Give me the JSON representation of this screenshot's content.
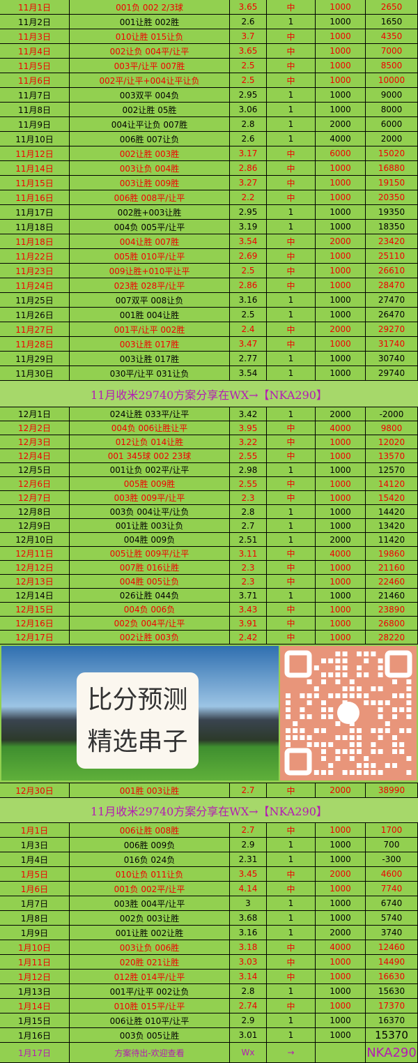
{
  "november": {
    "rows": [
      [
        "11月1日",
        "001负 002 2/3球",
        "3.65",
        "中",
        "1000",
        "2650"
      ],
      [
        "11月2日",
        "001让胜 002胜",
        "2.6",
        "1",
        "1000",
        "1650"
      ],
      [
        "11月3日",
        "010让胜 015让负",
        "3.7",
        "中",
        "1000",
        "4350"
      ],
      [
        "11月4日",
        "002让负 004平/让平",
        "3.65",
        "中",
        "1000",
        "7000"
      ],
      [
        "11月5日",
        "003平/让平 007胜",
        "2.5",
        "中",
        "1000",
        "8500"
      ],
      [
        "11月6日",
        "002平/让平+004让平让负",
        "2.5",
        "中",
        "1000",
        "10000"
      ],
      [
        "11月7日",
        "003双平 004负",
        "2.95",
        "1",
        "1000",
        "9000"
      ],
      [
        "11月8日",
        "002让胜 05胜",
        "3.06",
        "1",
        "1000",
        "8000"
      ],
      [
        "11月9日",
        "004让平让负 007胜",
        "2.8",
        "1",
        "2000",
        "6000"
      ],
      [
        "11月10日",
        "006胜 007让负",
        "2.6",
        "1",
        "4000",
        "2000"
      ],
      [
        "11月12日",
        "002让胜 003胜",
        "3.17",
        "中",
        "6000",
        "15020"
      ],
      [
        "11月14日",
        "003让负 004胜",
        "2.86",
        "中",
        "1000",
        "16880"
      ],
      [
        "11月15日",
        "003让胜 009胜",
        "3.27",
        "中",
        "1000",
        "19150"
      ],
      [
        "11月16日",
        "006胜 008平/让平",
        "2.2",
        "中",
        "1000",
        "20350"
      ],
      [
        "11月17日",
        "002胜+003让胜",
        "2.95",
        "1",
        "1000",
        "19350"
      ],
      [
        "11月18日",
        "004负 005平/让平",
        "3.19",
        "1",
        "1000",
        "18350"
      ],
      [
        "11月18日",
        "004让胜 007胜",
        "3.54",
        "中",
        "2000",
        "23420"
      ],
      [
        "11月22日",
        "005胜 010平/让平",
        "2.69",
        "中",
        "1000",
        "25110"
      ],
      [
        "11月23日",
        "009让胜+010平让平",
        "2.5",
        "中",
        "1000",
        "26610"
      ],
      [
        "11月24日",
        "023胜 028平/让平",
        "2.86",
        "中",
        "1000",
        "28470"
      ],
      [
        "11月25日",
        "007双平 008让负",
        "3.16",
        "1",
        "1000",
        "27470"
      ],
      [
        "11月26日",
        "001胜 004让胜",
        "2.5",
        "1",
        "1000",
        "26470"
      ],
      [
        "11月27日",
        "001平/让平 002胜",
        "2.4",
        "中",
        "2000",
        "29270"
      ],
      [
        "11月28日",
        "003让胜 017胜",
        "3.47",
        "中",
        "1000",
        "31740"
      ],
      [
        "11月29日",
        "003让胜 017胜",
        "2.77",
        "1",
        "1000",
        "30740"
      ],
      [
        "11月30日",
        "030平/让平 031让负",
        "3.54",
        "1",
        "1000",
        "29740"
      ]
    ]
  },
  "banner_1": "11月收米29740方案分享在WX→【NKA290】",
  "december": {
    "rows": [
      [
        "12月1日",
        "024让胜 033平/让平",
        "3.42",
        "1",
        "2000",
        "-2000"
      ],
      [
        "12月2日",
        "004负 006让胜让平",
        "3.95",
        "中",
        "4000",
        "9800"
      ],
      [
        "12月3日",
        "012让负 014让胜",
        "3.22",
        "中",
        "1000",
        "12020"
      ],
      [
        "12月4日",
        "001 345球 002 23球",
        "2.55",
        "中",
        "1000",
        "13570"
      ],
      [
        "12月5日",
        "001让负 002平/让平",
        "2.98",
        "1",
        "1000",
        "12570"
      ],
      [
        "12月6日",
        "005胜 009胜",
        "2.55",
        "中",
        "1000",
        "14120"
      ],
      [
        "12月7日",
        "003胜 009平/让平",
        "2.3",
        "中",
        "1000",
        "15420"
      ],
      [
        "12月8日",
        "003负 004让平/让负",
        "2.8",
        "1",
        "1000",
        "14420"
      ],
      [
        "12月9日",
        "001让胜 003让负",
        "2.7",
        "1",
        "1000",
        "13420"
      ],
      [
        "12月10日",
        "004胜 009负",
        "2.51",
        "1",
        "2000",
        "11420"
      ],
      [
        "12月11日",
        "005让胜 009平/让平",
        "3.11",
        "中",
        "4000",
        "19860"
      ],
      [
        "12月12日",
        "007胜 016让胜",
        "2.3",
        "中",
        "1000",
        "21160"
      ],
      [
        "12月13日",
        "004胜 005让负",
        "2.3",
        "中",
        "1000",
        "22460"
      ],
      [
        "12月14日",
        "026让胜 044负",
        "3.71",
        "1",
        "1000",
        "21460"
      ],
      [
        "12月15日",
        "004负 006负",
        "3.43",
        "中",
        "1000",
        "23890"
      ],
      [
        "12月16日",
        "002负 004平/让平",
        "3.91",
        "中",
        "1000",
        "26800"
      ],
      [
        "12月17日",
        "002让胜 003负",
        "2.42",
        "中",
        "1000",
        "28220"
      ]
    ]
  },
  "promo": {
    "lines": [
      "比分预测",
      "精选串子"
    ]
  },
  "december_late": {
    "rows": [
      [
        "12月30日",
        "001胜 003让胜",
        "2.7",
        "中",
        "2000",
        "38990"
      ]
    ]
  },
  "banner_2": "11月收米29740方案分享在WX→【NKA290】",
  "january": {
    "rows": [
      [
        "1月1日",
        "006让胜 008胜",
        "2.7",
        "中",
        "1000",
        "1700"
      ],
      [
        "1月3日",
        "006胜 009负",
        "2.9",
        "1",
        "1000",
        "700"
      ],
      [
        "1月4日",
        "016负 024负",
        "2.31",
        "1",
        "1000",
        "-300"
      ],
      [
        "1月5日",
        "010让负 011让负",
        "3.45",
        "中",
        "2000",
        "4600"
      ],
      [
        "1月6日",
        "001负 002平/让平",
        "4.14",
        "中",
        "1000",
        "7740"
      ],
      [
        "1月7日",
        "003胜 004平/让平",
        "3",
        "1",
        "1000",
        "6740"
      ],
      [
        "1月8日",
        "002负 003让胜",
        "3.68",
        "1",
        "1000",
        "5740"
      ],
      [
        "1月9日",
        "001让胜 002让胜",
        "3.16",
        "1",
        "2000",
        "3740"
      ],
      [
        "1月10日",
        "003让负 006胜",
        "3.18",
        "中",
        "4000",
        "12460"
      ],
      [
        "1月11日",
        "020胜 021让胜",
        "3.03",
        "中",
        "1000",
        "14490"
      ],
      [
        "1月12日",
        "012胜 014平/让平",
        "3.14",
        "中",
        "1000",
        "16630"
      ],
      [
        "1月13日",
        "001平/让平 002让负",
        "2.8",
        "1",
        "1000",
        "15630"
      ],
      [
        "1月14日",
        "010胜 015平/让平",
        "2.74",
        "中",
        "1000",
        "17370"
      ],
      [
        "1月15日",
        "006让胜 010平/让平",
        "2.9",
        "1",
        "1000",
        "16370"
      ],
      [
        "1月16日",
        "003负 005让胜",
        "3.01",
        "1",
        "1000",
        "15370"
      ]
    ]
  },
  "last_row": [
    "1月17日",
    "方案待出-欢迎查看",
    "Wx",
    "→",
    "NKA290"
  ]
}
